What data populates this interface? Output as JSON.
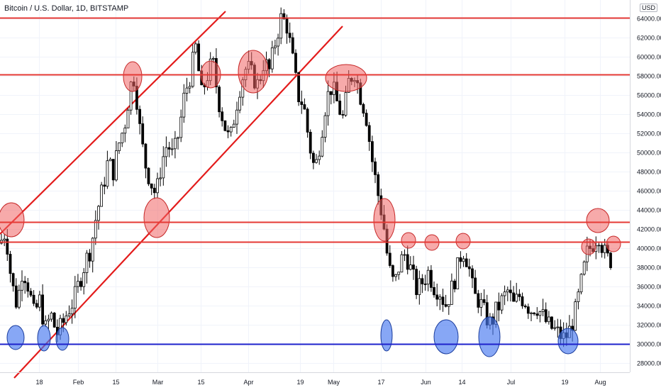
{
  "header": {
    "title": "Bitcoin / U.S. Dollar, 1D, BITSTAMP",
    "currency": "USD"
  },
  "chart_data": {
    "type": "candlestick",
    "title": "Bitcoin / U.S. Dollar, 1D, BITSTAMP",
    "x_tick_labels": [
      "18",
      "Feb",
      "15",
      "Mar",
      "15",
      "Apr",
      "19",
      "May",
      "17",
      "Jun",
      "14",
      "Jul",
      "19",
      "Aug"
    ],
    "y_tick_labels": [
      28000,
      30000,
      32000,
      34000,
      36000,
      38000,
      40000,
      42000,
      44000,
      46000,
      48000,
      50000,
      52000,
      54000,
      56000,
      58000,
      60000,
      62000,
      64000
    ],
    "y_range": [
      27000,
      65200
    ],
    "horizontal_levels": [
      {
        "value": 64074.77,
        "label": "64074.77",
        "color": "#e53935"
      },
      {
        "value": 58125.68,
        "label": "58125.68",
        "color": "#e53935"
      },
      {
        "value": 42705.37,
        "label": "42705.37",
        "color": "#e53935"
      },
      {
        "value": 41038.3,
        "label": "41038.30",
        "color": "#ffffff"
      },
      {
        "value": 40616.33,
        "label": "40616.33",
        "color": "#e53935"
      },
      {
        "value": 29933.24,
        "label": "29933.24",
        "color": "#1e22cc"
      }
    ],
    "price_path": [
      [
        0,
        40500
      ],
      [
        8,
        41800
      ],
      [
        16,
        36500
      ],
      [
        24,
        34000
      ],
      [
        32,
        38000
      ],
      [
        40,
        36000
      ],
      [
        48,
        33000
      ],
      [
        56,
        34500
      ],
      [
        64,
        31500
      ],
      [
        72,
        33000
      ],
      [
        80,
        31000
      ],
      [
        88,
        32000
      ],
      [
        96,
        33500
      ],
      [
        104,
        34500
      ],
      [
        112,
        36500
      ],
      [
        120,
        38500
      ],
      [
        128,
        40000
      ],
      [
        136,
        43500
      ],
      [
        144,
        46000
      ],
      [
        152,
        49000
      ],
      [
        160,
        48000
      ],
      [
        168,
        51000
      ],
      [
        176,
        53000
      ],
      [
        184,
        57000
      ],
      [
        190,
        58000
      ],
      [
        196,
        53000
      ],
      [
        204,
        49000
      ],
      [
        212,
        47000
      ],
      [
        220,
        45500
      ],
      [
        228,
        49000
      ],
      [
        236,
        51000
      ],
      [
        244,
        49500
      ],
      [
        252,
        52000
      ],
      [
        260,
        56000
      ],
      [
        268,
        58000
      ],
      [
        276,
        61000
      ],
      [
        284,
        56000
      ],
      [
        292,
        58000
      ],
      [
        300,
        59500
      ],
      [
        308,
        55500
      ],
      [
        316,
        53000
      ],
      [
        324,
        51000
      ],
      [
        332,
        54500
      ],
      [
        340,
        57500
      ],
      [
        348,
        59000
      ],
      [
        356,
        58000
      ],
      [
        364,
        57000
      ],
      [
        372,
        59500
      ],
      [
        380,
        58500
      ],
      [
        388,
        61500
      ],
      [
        396,
        64000
      ],
      [
        404,
        63500
      ],
      [
        412,
        60000
      ],
      [
        420,
        56000
      ],
      [
        428,
        55000
      ],
      [
        436,
        51000
      ],
      [
        444,
        48000
      ],
      [
        452,
        51500
      ],
      [
        460,
        55500
      ],
      [
        468,
        57000
      ],
      [
        476,
        55000
      ],
      [
        484,
        53500
      ],
      [
        492,
        57500
      ],
      [
        500,
        58500
      ],
      [
        508,
        56000
      ],
      [
        516,
        54000
      ],
      [
        524,
        49500
      ],
      [
        532,
        46000
      ],
      [
        540,
        43000
      ],
      [
        548,
        38000
      ],
      [
        556,
        36000
      ],
      [
        564,
        38500
      ],
      [
        572,
        39500
      ],
      [
        580,
        37500
      ],
      [
        588,
        35500
      ],
      [
        596,
        36500
      ],
      [
        604,
        37500
      ],
      [
        612,
        36000
      ],
      [
        620,
        35500
      ],
      [
        628,
        34000
      ],
      [
        636,
        35500
      ],
      [
        644,
        37500
      ],
      [
        652,
        40000
      ],
      [
        660,
        38500
      ],
      [
        668,
        35000
      ],
      [
        676,
        34500
      ],
      [
        684,
        33000
      ],
      [
        692,
        32000
      ],
      [
        700,
        33500
      ],
      [
        708,
        34500
      ],
      [
        716,
        35500
      ],
      [
        724,
        34000
      ],
      [
        732,
        35000
      ],
      [
        740,
        34500
      ],
      [
        748,
        33500
      ],
      [
        756,
        34000
      ],
      [
        764,
        33000
      ],
      [
        772,
        32000
      ],
      [
        780,
        31500
      ],
      [
        788,
        31000
      ],
      [
        796,
        30500
      ],
      [
        804,
        31500
      ],
      [
        812,
        33500
      ],
      [
        820,
        36500
      ],
      [
        828,
        39500
      ],
      [
        836,
        40500
      ],
      [
        844,
        41500
      ],
      [
        852,
        39500
      ],
      [
        860,
        38500
      ],
      [
        864,
        39500
      ]
    ],
    "resistance_circle_count": 14,
    "support_circle_count": 7
  }
}
